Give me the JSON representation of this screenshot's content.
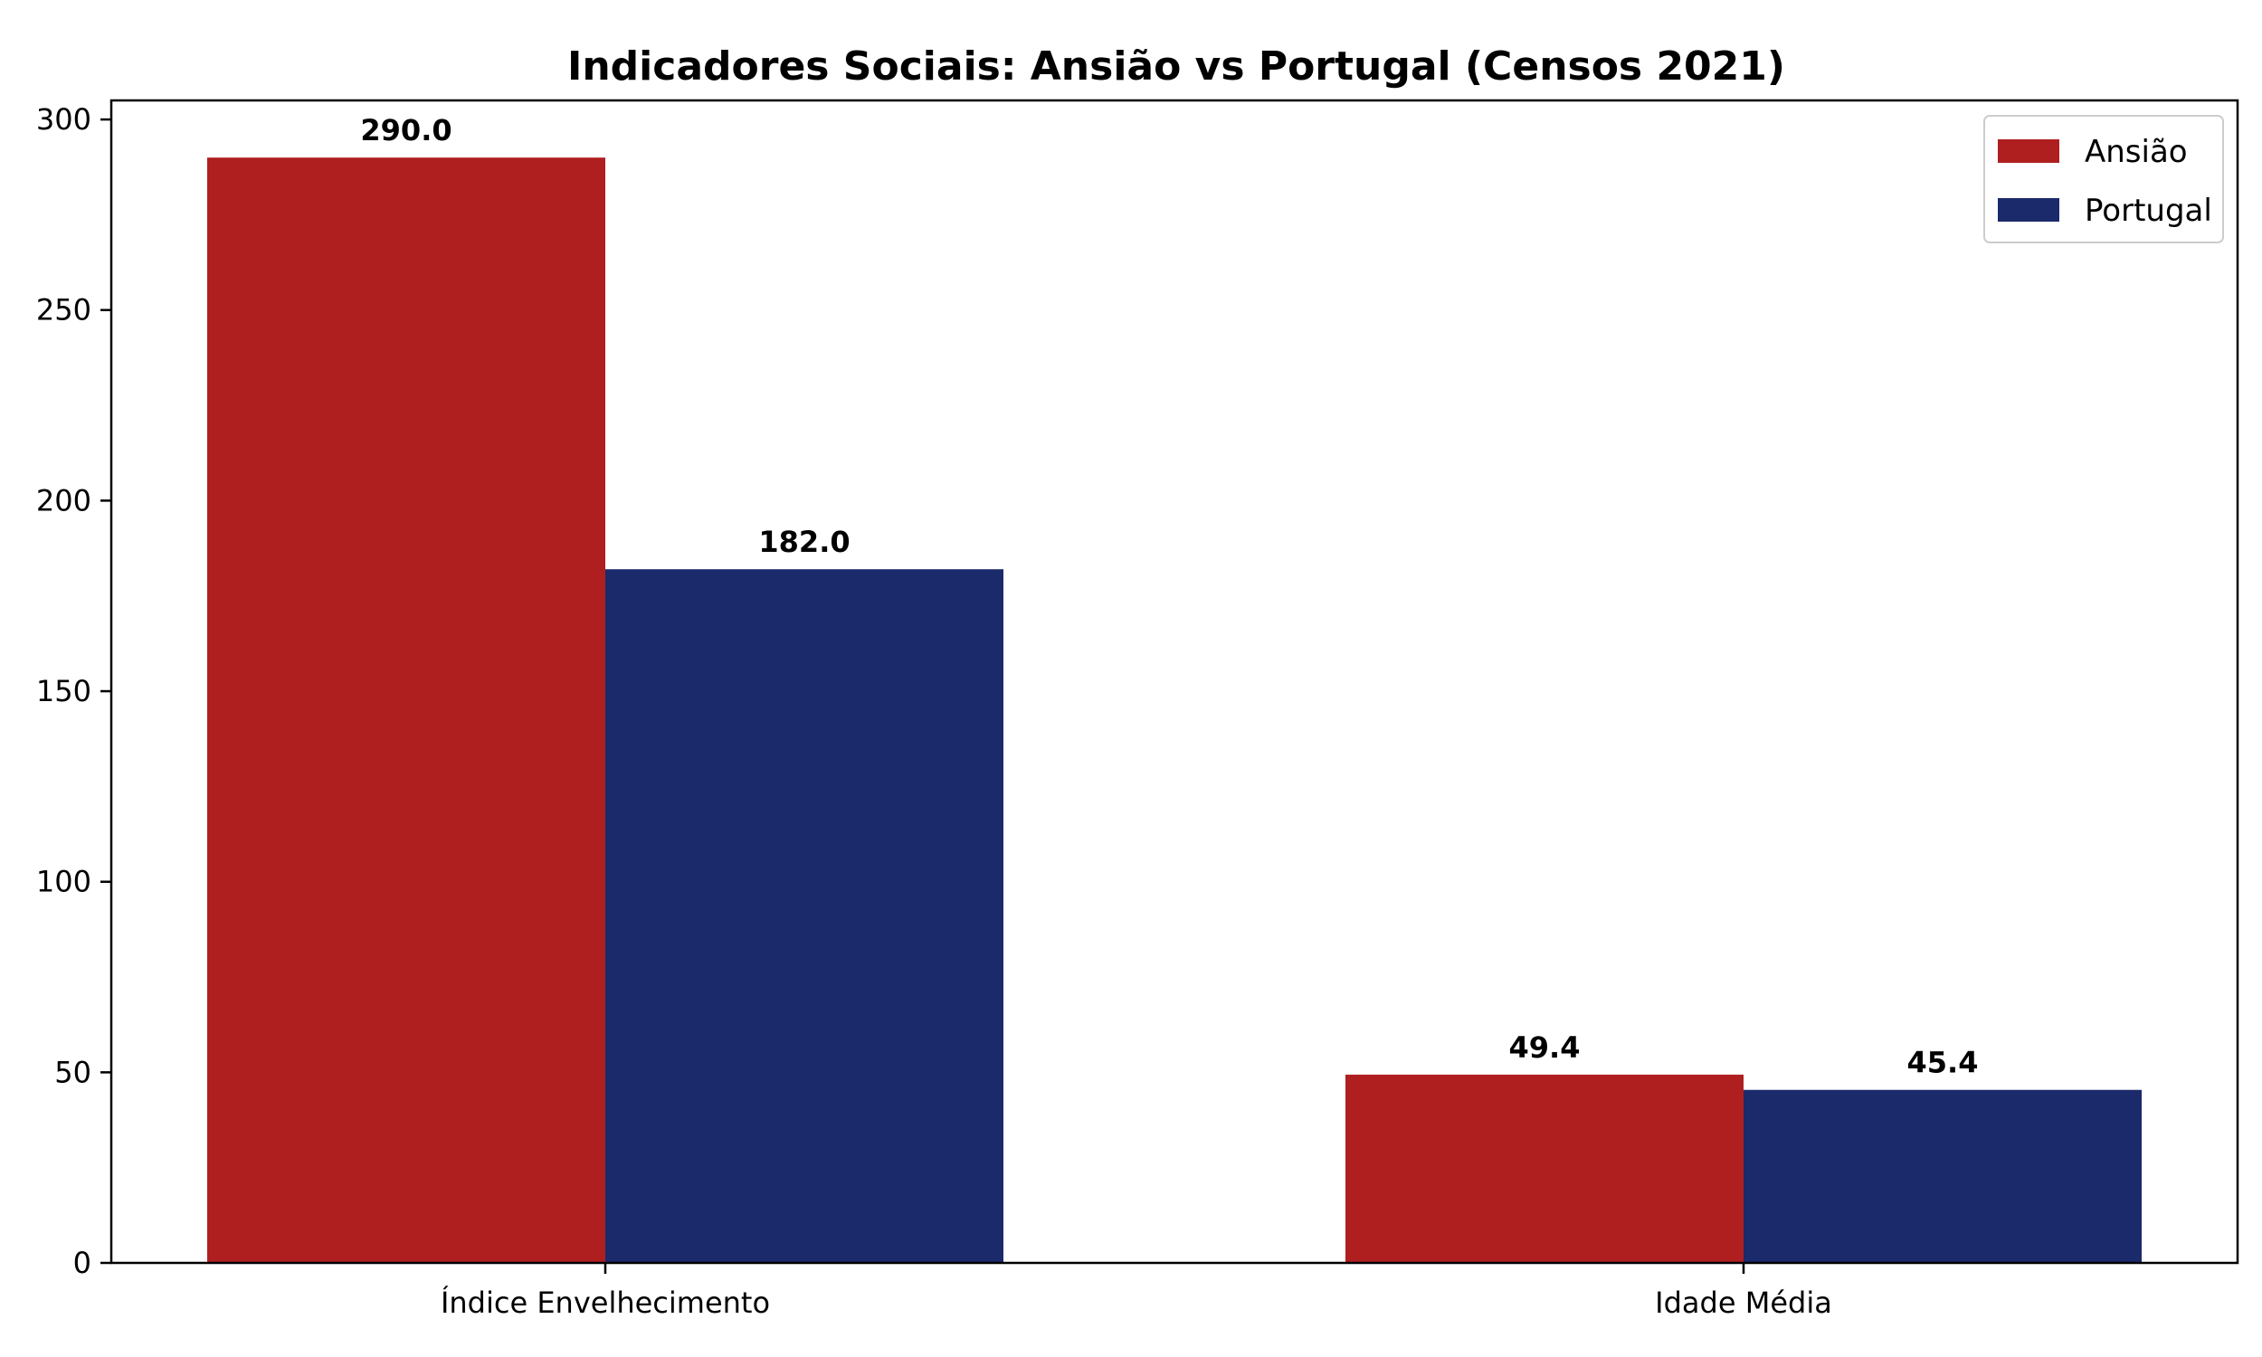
{
  "chart_data": {
    "type": "bar",
    "title": "Indicadores Sociais: Ansião vs Portugal (Censos 2021)",
    "xlabel": "",
    "ylabel": "",
    "categories": [
      "Índice Envelhecimento",
      "Idade Média"
    ],
    "series": [
      {
        "name": "Ansião",
        "values": [
          290.0,
          49.4
        ],
        "labels": [
          "290.0",
          "49.4"
        ],
        "color": "#b01f20"
      },
      {
        "name": "Portugal",
        "values": [
          182.0,
          45.4
        ],
        "labels": [
          "182.0",
          "45.4"
        ],
        "color": "#1b2a6b"
      }
    ],
    "ylim": [
      0,
      305
    ],
    "yticks": [
      0,
      50,
      100,
      150,
      200,
      250,
      300
    ],
    "yticklabels": [
      "0",
      "50",
      "100",
      "150",
      "200",
      "250",
      "300"
    ],
    "grid": false,
    "legend_position": "top-right"
  }
}
